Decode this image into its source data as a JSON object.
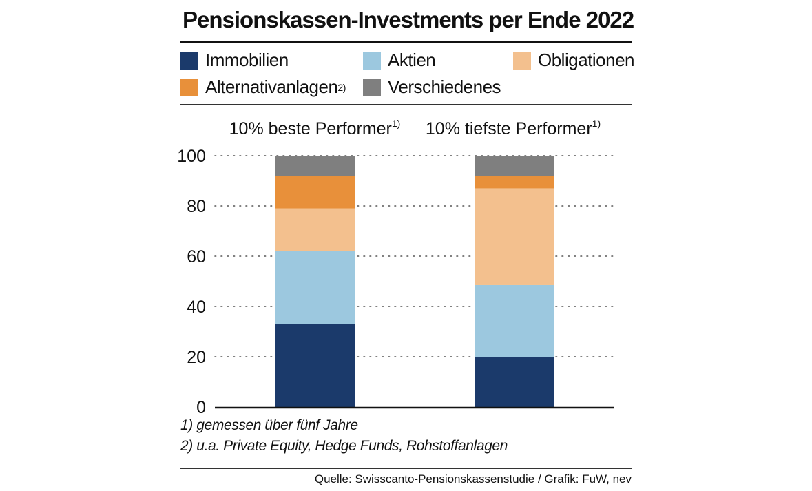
{
  "title": "Pensionskassen-Investments per Ende 2022",
  "legend": [
    {
      "label": "Immobilien",
      "sup": "",
      "color": "#1b3a6b"
    },
    {
      "label": "Aktien",
      "sup": "",
      "color": "#9cc8df"
    },
    {
      "label": "Obligationen",
      "sup": "",
      "color": "#f3c08e"
    },
    {
      "label": "Alternativanlagen",
      "sup": "2)",
      "color": "#e8903a"
    },
    {
      "label": "Verschiedenes",
      "sup": "",
      "color": "#7f7f7f"
    }
  ],
  "chart_data": {
    "type": "bar",
    "stacked": true,
    "categories": [
      "10% beste Performer",
      "10% tiefste Performer"
    ],
    "category_superscripts": [
      "1)",
      "1)"
    ],
    "series": [
      {
        "name": "Immobilien",
        "color": "#1b3a6b",
        "values": [
          33,
          20
        ]
      },
      {
        "name": "Aktien",
        "color": "#9cc8df",
        "values": [
          29,
          28.5
        ]
      },
      {
        "name": "Obligationen",
        "color": "#f3c08e",
        "values": [
          17,
          38.5
        ]
      },
      {
        "name": "Alternativanlagen",
        "color": "#e8903a",
        "values": [
          13,
          5
        ]
      },
      {
        "name": "Verschiedenes",
        "color": "#7f7f7f",
        "values": [
          8,
          8
        ]
      }
    ],
    "yticks": [
      0,
      20,
      40,
      60,
      80,
      100
    ],
    "ylim": [
      0,
      100
    ],
    "grid": "dotted"
  },
  "footnotes": [
    "1) gemessen über fünf Jahre",
    "2) u.a. Private Equity, Hedge Funds, Rohstoffanlagen"
  ],
  "source": "Quelle: Swisscanto-Pensionskassenstudie / Grafik: FuW, nev"
}
